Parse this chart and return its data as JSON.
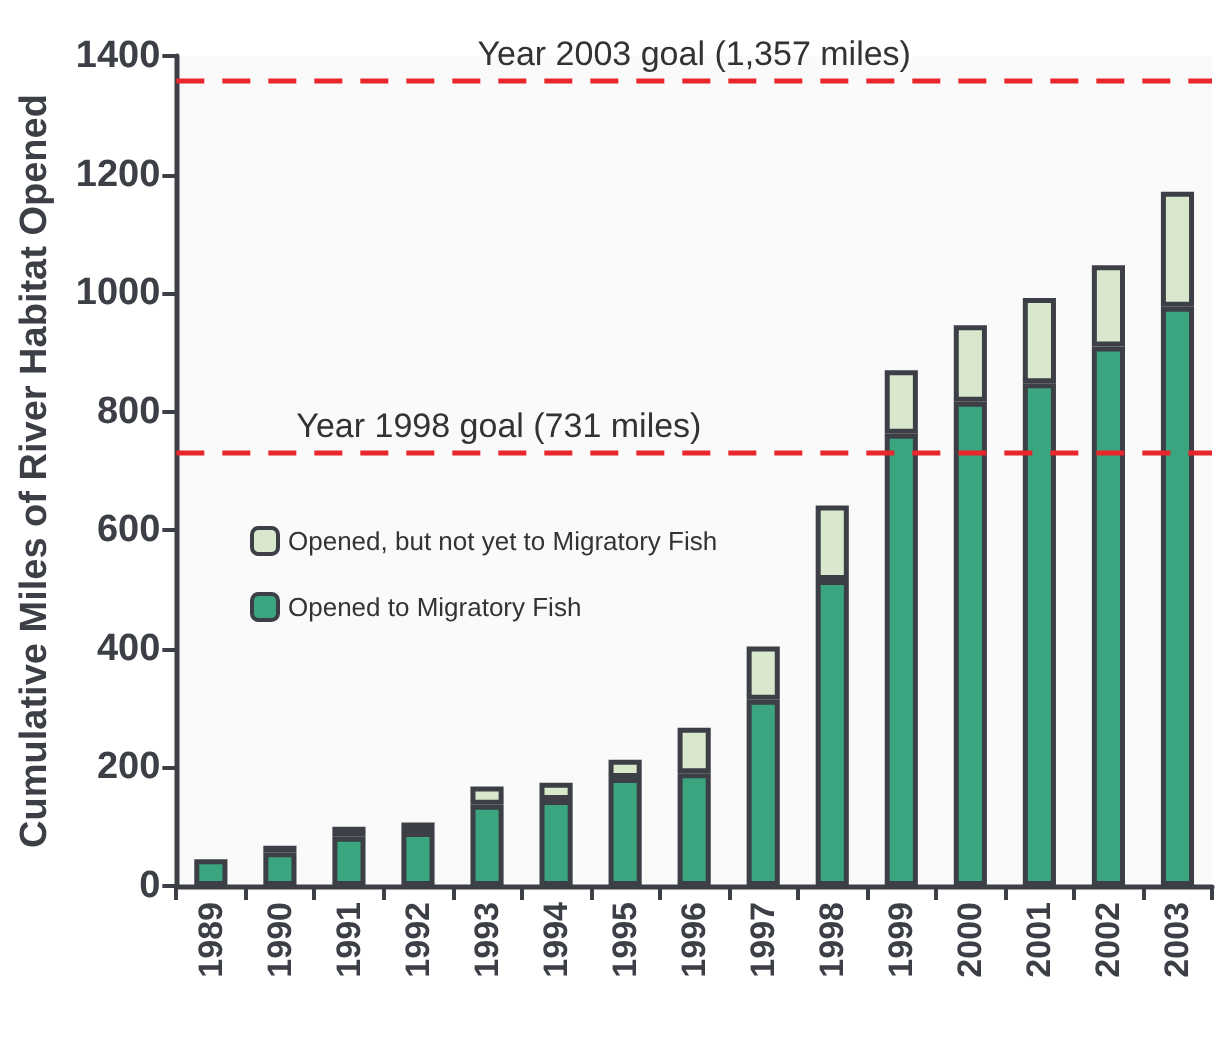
{
  "chart_data": {
    "type": "bar",
    "stacked": true,
    "ylabel": "Cumulative Miles of River Habitat Opened",
    "categories": [
      "1989",
      "1990",
      "1991",
      "1992",
      "1993",
      "1994",
      "1995",
      "1996",
      "1997",
      "1998",
      "1999",
      "2000",
      "2001",
      "2002",
      "2003"
    ],
    "series": [
      {
        "name": "Opened to Migratory Fish",
        "color": "#3ba57f",
        "values": [
          45,
          57,
          83,
          91,
          137,
          145,
          182,
          190,
          314,
          516,
          763,
          817,
          848,
          910,
          977
        ]
      },
      {
        "name": "Opened, but not yet to Migratory Fish",
        "color": "#d9e8cc",
        "values": [
          null,
          11,
          17,
          16,
          31,
          29,
          31,
          77,
          90,
          126,
          107,
          129,
          144,
          137,
          194
        ]
      }
    ],
    "ylim": [
      0,
      1400
    ],
    "yticks": [
      0,
      200,
      400,
      600,
      800,
      1000,
      1200,
      1400
    ],
    "grid": false,
    "legend": "left",
    "ref_lines": [
      {
        "axis": "y",
        "value": 1357,
        "label": "Year 2003 goal (1,357 miles)",
        "color": "#e8262b",
        "line_style": "dashed"
      },
      {
        "axis": "y",
        "value": 731,
        "label": "Year 1998 goal (731 miles)",
        "color": "#e8262b",
        "line_style": "dashed"
      }
    ]
  }
}
